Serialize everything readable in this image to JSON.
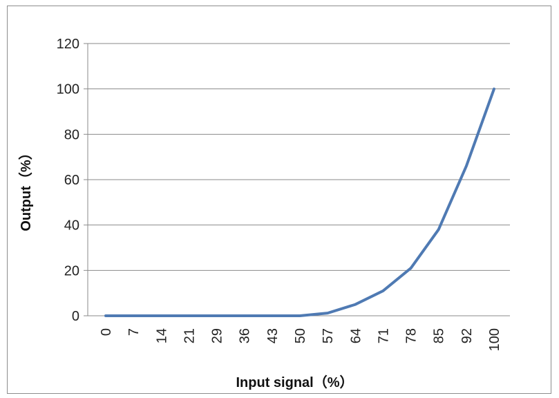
{
  "chart_data": {
    "type": "line",
    "title": "",
    "xlabel": "Input signal（%）",
    "ylabel": "Output（%）",
    "categories": [
      "0",
      "7",
      "14",
      "21",
      "29",
      "36",
      "43",
      "50",
      "57",
      "64",
      "71",
      "78",
      "85",
      "92",
      "100"
    ],
    "ylim": [
      0,
      120
    ],
    "yticks": [
      "0",
      "20",
      "40",
      "60",
      "80",
      "100",
      "120"
    ],
    "grid": "horizontal",
    "legend": "none",
    "series": [
      {
        "values": [
          0,
          0,
          0,
          0,
          0,
          0,
          0,
          0,
          1.2,
          5,
          11,
          21,
          38,
          66,
          100
        ],
        "color": "#4f7ab3"
      }
    ]
  }
}
